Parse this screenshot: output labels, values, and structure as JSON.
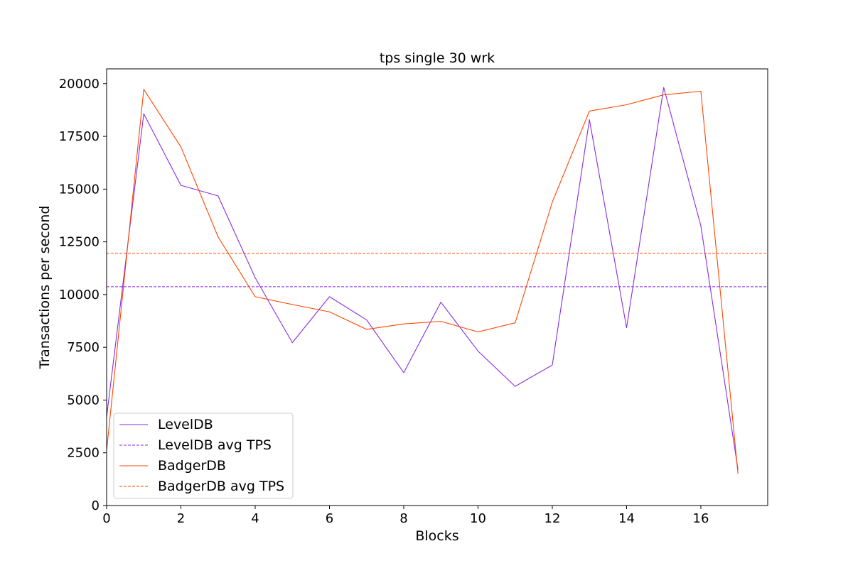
{
  "chart_data": {
    "type": "line",
    "title": "tps single 30 wrk",
    "xlabel": "Blocks",
    "ylabel": "Transactions per second",
    "xlim": [
      0,
      17.8
    ],
    "ylim": [
      0,
      20700
    ],
    "xticks": [
      0,
      2,
      4,
      6,
      8,
      10,
      12,
      14,
      16
    ],
    "yticks": [
      0,
      2500,
      5000,
      7500,
      10000,
      12500,
      15000,
      17500,
      20000
    ],
    "grid": false,
    "legend_position": "lower-left",
    "x": [
      0,
      1,
      2,
      3,
      4,
      5,
      6,
      7,
      8,
      9,
      10,
      11,
      12,
      13,
      14,
      15,
      16,
      17
    ],
    "series": [
      {
        "name": "LevelDB",
        "color": "#8a2be2",
        "style": "solid",
        "values": [
          4200,
          18570,
          15180,
          14680,
          10800,
          7720,
          9900,
          8800,
          6300,
          9640,
          7320,
          5650,
          6660,
          18290,
          8430,
          19820,
          13260,
          1700
        ]
      },
      {
        "name": "LevelDB avg TPS",
        "color": "#8a2be2",
        "style": "dashed",
        "constant": 10370
      },
      {
        "name": "BadgerDB",
        "color": "#ff4500",
        "style": "solid",
        "values": [
          2600,
          19730,
          17000,
          12740,
          9900,
          9530,
          9180,
          8350,
          8610,
          8730,
          8230,
          8660,
          14380,
          18700,
          19000,
          19470,
          19640,
          1500
        ]
      },
      {
        "name": "BadgerDB avg TPS",
        "color": "#ff4500",
        "style": "dashed",
        "constant": 11960
      }
    ]
  }
}
